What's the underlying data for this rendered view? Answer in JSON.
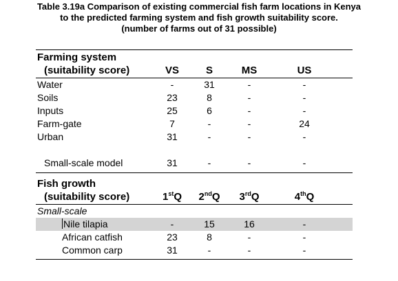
{
  "caption": {
    "line1": "Table 3.19a Comparison of existing commercial fish farm locations in Kenya",
    "line2": "to the predicted farming system and fish growth suitability score.",
    "line3": "(number of farms out of 31 possible)"
  },
  "farming": {
    "title": "Farming system",
    "subtitle": "(suitability score)",
    "columns": [
      "VS",
      "S",
      "MS",
      "US"
    ],
    "rows": [
      {
        "label": "Water",
        "values": [
          "-",
          "31",
          "-",
          "-"
        ]
      },
      {
        "label": "Soils",
        "values": [
          "23",
          "8",
          "-",
          "-"
        ]
      },
      {
        "label": "Inputs",
        "values": [
          "25",
          "6",
          "-",
          "-"
        ]
      },
      {
        "label": "Farm-gate",
        "values": [
          "7",
          "-",
          "-",
          "24"
        ]
      },
      {
        "label": "Urban",
        "values": [
          "31",
          "-",
          "-",
          "-"
        ]
      }
    ],
    "model": {
      "label": "Small-scale model",
      "values": [
        "31",
        "-",
        "-",
        "-"
      ]
    }
  },
  "growth": {
    "title": "Fish growth",
    "subtitle": "(suitability score)",
    "columns": [
      {
        "num": "1",
        "sup": "st",
        "suffix": "Q"
      },
      {
        "num": "2",
        "sup": "nd",
        "suffix": "Q"
      },
      {
        "num": "3",
        "sup": "rd",
        "suffix": "Q"
      },
      {
        "num": "4",
        "sup": "th",
        "suffix": "Q"
      }
    ],
    "group_label": "Small-scale",
    "rows": [
      {
        "label": "Nile tilapia",
        "values": [
          "-",
          "15",
          "16",
          "-"
        ]
      },
      {
        "label": "African catfish",
        "values": [
          "23",
          "8",
          "-",
          "-"
        ]
      },
      {
        "label": "Common carp",
        "values": [
          "31",
          "-",
          "-",
          "-"
        ]
      }
    ]
  }
}
